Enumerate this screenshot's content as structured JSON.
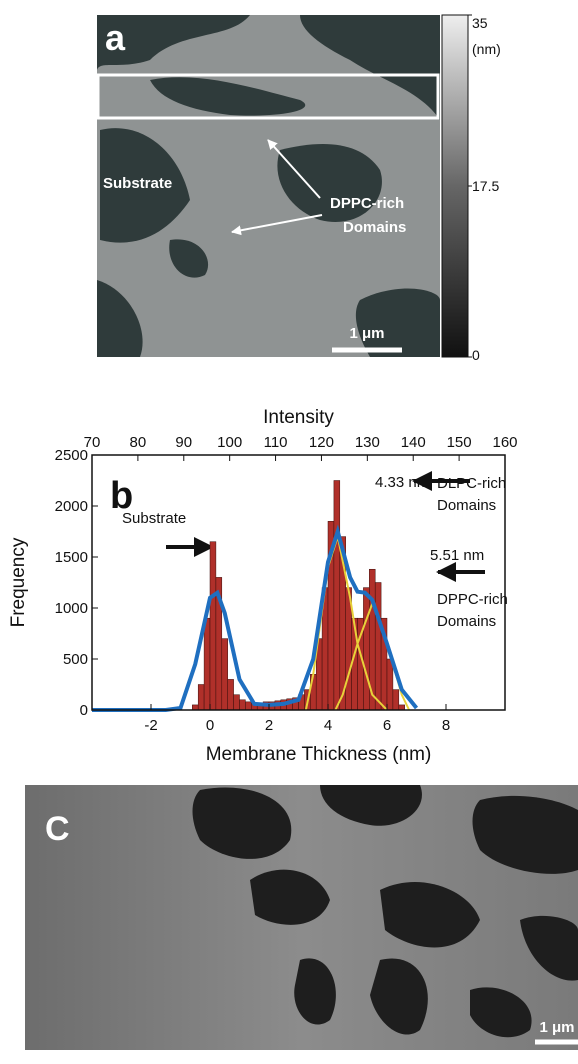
{
  "panel_a": {
    "label": "a",
    "substrate": "Substrate",
    "domains": [
      "DPPC-rich",
      "Domains"
    ],
    "scale_bar": "1 μm",
    "colorbar": {
      "unit": "(nm)",
      "lim": [
        0,
        35
      ],
      "ticks": [
        0,
        17.5,
        35
      ]
    }
  },
  "chart_data": {
    "type": "histogram",
    "panel_label": "b",
    "xlabel": "Membrane Thickness (nm)",
    "ylabel": "Frequency",
    "x2label": "Intensity",
    "xlim": [
      -4,
      10
    ],
    "xticks": [
      -2,
      0,
      2,
      4,
      6,
      8
    ],
    "x2lim": [
      70,
      160
    ],
    "x2ticks": [
      70,
      80,
      90,
      100,
      110,
      120,
      130,
      140,
      150,
      160
    ],
    "ylim": [
      0,
      2500
    ],
    "yticks": [
      0,
      500,
      1000,
      1500,
      2000,
      2500
    ],
    "color": "#b0302a",
    "bins": [
      -0.6,
      -0.4,
      -0.2,
      0,
      0.2,
      0.4,
      0.6,
      0.8,
      1.0,
      1.2,
      1.4,
      1.6,
      1.8,
      2.0,
      2.2,
      2.4,
      2.6,
      2.8,
      3.0,
      3.2,
      3.4,
      3.6,
      3.8,
      4.0,
      4.2,
      4.4,
      4.6,
      4.8,
      5.0,
      5.2,
      5.4,
      5.6,
      5.8,
      6.0,
      6.2,
      6.4,
      6.6
    ],
    "counts": [
      50,
      250,
      900,
      1650,
      1300,
      700,
      300,
      150,
      100,
      80,
      70,
      70,
      80,
      80,
      90,
      100,
      110,
      120,
      150,
      200,
      350,
      700,
      1200,
      1850,
      2250,
      1700,
      1200,
      900,
      900,
      1200,
      1380,
      1250,
      900,
      500,
      200,
      50
    ],
    "curves": [
      {
        "color": "#e8d23a",
        "x": [
          3.25,
          3.5,
          4,
          4.33,
          4.75,
          5,
          5.5,
          6
        ],
        "values": [
          0,
          350,
          1400,
          1700,
          1100,
          650,
          150,
          0
        ]
      },
      {
        "color": "#e8d23a",
        "x": [
          4.25,
          4.5,
          5,
          5.51,
          6,
          6.5,
          6.75
        ],
        "values": [
          0,
          150,
          650,
          1050,
          650,
          150,
          0
        ]
      },
      {
        "color": "#1f6fc0",
        "x": [
          -4,
          -1.5,
          -1,
          -0.5,
          0,
          0.25,
          0.5,
          1,
          1.5,
          2,
          2.5,
          3,
          3.5,
          4,
          4.33,
          4.75,
          5,
          5.25,
          5.5,
          6,
          6.5,
          7
        ],
        "values": [
          0,
          0,
          20,
          450,
          1100,
          1150,
          950,
          300,
          60,
          50,
          60,
          100,
          500,
          1450,
          1750,
          1300,
          1160,
          1150,
          1080,
          650,
          200,
          20
        ]
      }
    ],
    "annotations": {
      "peak1": "4.33 nm",
      "peak2": "5.51 nm",
      "substrate": "Substrate",
      "dlpc": [
        "DLPC-rich",
        "Domains"
      ],
      "dppc": [
        "DPPC-rich",
        "Domains"
      ]
    }
  },
  "panel_c": {
    "label": "C",
    "scale_bar": "1 μm"
  }
}
